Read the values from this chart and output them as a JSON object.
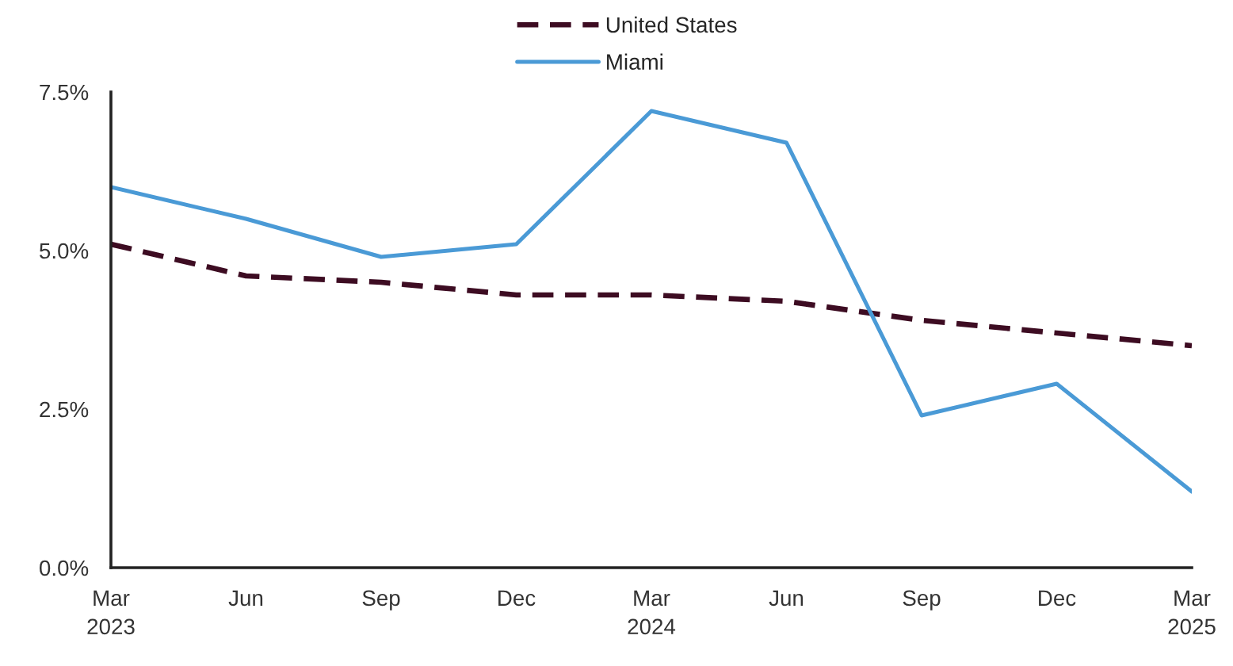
{
  "chart_data": {
    "type": "line",
    "categories": [
      "Mar\n2023",
      "Jun",
      "Sep",
      "Dec",
      "Mar\n2024",
      "Jun",
      "Sep",
      "Dec",
      "Mar\n2025"
    ],
    "series": [
      {
        "name": "United States",
        "color": "#3d0c22",
        "line_style": "dashed",
        "values": [
          5.1,
          4.6,
          4.5,
          4.3,
          4.3,
          4.2,
          3.9,
          3.7,
          3.5
        ]
      },
      {
        "name": "Miami",
        "color": "#4a9ad6",
        "line_style": "solid",
        "values": [
          6.0,
          5.5,
          4.9,
          5.1,
          7.2,
          6.7,
          2.4,
          2.9,
          1.2
        ]
      }
    ],
    "ylim": [
      0,
      7.5
    ],
    "yticks": [
      {
        "value": 0,
        "label": "0.0%"
      },
      {
        "value": 2.5,
        "label": "2.5%"
      },
      {
        "value": 5,
        "label": "5.0%"
      },
      {
        "value": 7.5,
        "label": "7.5%"
      }
    ],
    "grid": false,
    "legend": "top",
    "marker": "none"
  }
}
